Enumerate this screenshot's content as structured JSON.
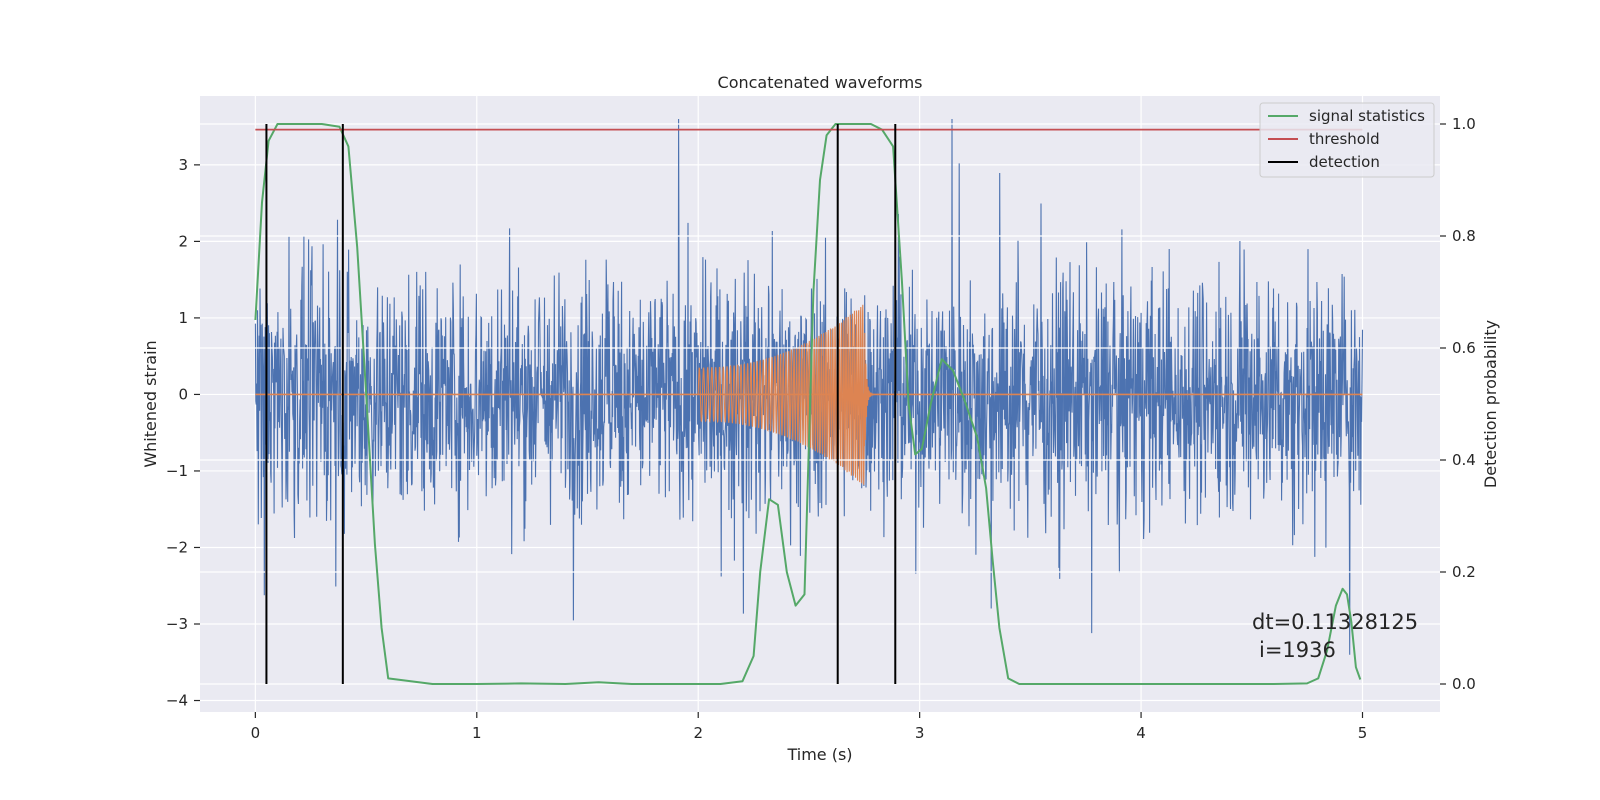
{
  "chart_data": {
    "type": "line",
    "title": "Concatenated waveforms",
    "xlabel": "Time (s)",
    "ylabel": "Whitened strain",
    "y2label": "Detection probability",
    "xlim": [
      -0.25,
      5.35
    ],
    "ylim": [
      -4.15,
      3.9
    ],
    "y2lim": [
      -0.05,
      1.05
    ],
    "x_ticks": [
      0,
      1,
      2,
      3,
      4,
      5
    ],
    "y_ticks": [
      -4,
      -3,
      -2,
      -1,
      0,
      1,
      2,
      3
    ],
    "y2_ticks": [
      "0.0",
      "0.2",
      "0.4",
      "0.6",
      "0.8",
      "1.0"
    ],
    "grid": true,
    "legend_position": "top-right",
    "annotation": {
      "line1": "dt=0.11328125",
      "line2": "i=1936"
    },
    "colors": {
      "background": "#eaeaf2",
      "noise": "#4c72b0",
      "injection": "#dd8452",
      "signal": "#55a868",
      "threshold": "#c44e52",
      "detection": "#000000"
    },
    "series": [
      {
        "name": "",
        "axis": "left",
        "kind": "noise",
        "x_range": [
          0,
          5
        ],
        "noise_amplitude": 1.0,
        "y_range": [
          -3.8,
          3.6
        ]
      },
      {
        "name": "",
        "axis": "left",
        "kind": "chirp",
        "x_range": [
          2.0,
          2.75
        ],
        "envelope_start": 0.35,
        "envelope_end": 1.2,
        "baseline": 0
      },
      {
        "name": "signal statistics",
        "axis": "right",
        "x": [
          0,
          0.03,
          0.06,
          0.1,
          0.2,
          0.3,
          0.38,
          0.42,
          0.46,
          0.5,
          0.54,
          0.57,
          0.6,
          0.8,
          1.0,
          1.2,
          1.4,
          1.55,
          1.7,
          1.9,
          2.1,
          2.2,
          2.25,
          2.28,
          2.32,
          2.36,
          2.4,
          2.44,
          2.48,
          2.52,
          2.55,
          2.58,
          2.62,
          2.7,
          2.78,
          2.83,
          2.88,
          2.92,
          2.95,
          2.98,
          3.01,
          3.05,
          3.1,
          3.15,
          3.2,
          3.26,
          3.3,
          3.33,
          3.36,
          3.4,
          3.45,
          3.6,
          3.8,
          4.0,
          4.2,
          4.4,
          4.6,
          4.75,
          4.8,
          4.84,
          4.88,
          4.91,
          4.93,
          4.95,
          4.97,
          4.99
        ],
        "values": [
          0.65,
          0.86,
          0.97,
          1.0,
          1.0,
          1.0,
          0.995,
          0.96,
          0.78,
          0.52,
          0.25,
          0.1,
          0.01,
          0.0,
          0.0,
          0.001,
          0.0,
          0.003,
          0.0,
          0.0,
          0.0,
          0.005,
          0.05,
          0.2,
          0.33,
          0.32,
          0.2,
          0.14,
          0.16,
          0.7,
          0.9,
          0.98,
          1.0,
          1.0,
          1.0,
          0.99,
          0.96,
          0.72,
          0.5,
          0.41,
          0.42,
          0.5,
          0.58,
          0.56,
          0.51,
          0.44,
          0.35,
          0.22,
          0.1,
          0.01,
          0.0,
          0.0,
          0.0,
          0.0,
          0.0,
          0.0,
          0.0,
          0.001,
          0.01,
          0.06,
          0.14,
          0.17,
          0.16,
          0.11,
          0.03,
          0.008
        ]
      },
      {
        "name": "threshold",
        "axis": "right",
        "x": [
          0,
          5
        ],
        "values": [
          0.99,
          0.99
        ]
      },
      {
        "name": "detection",
        "axis": "right",
        "x_positions": [
          0.05,
          0.395,
          2.63,
          2.89
        ],
        "from": 0.0,
        "to": 1.0
      }
    ]
  }
}
